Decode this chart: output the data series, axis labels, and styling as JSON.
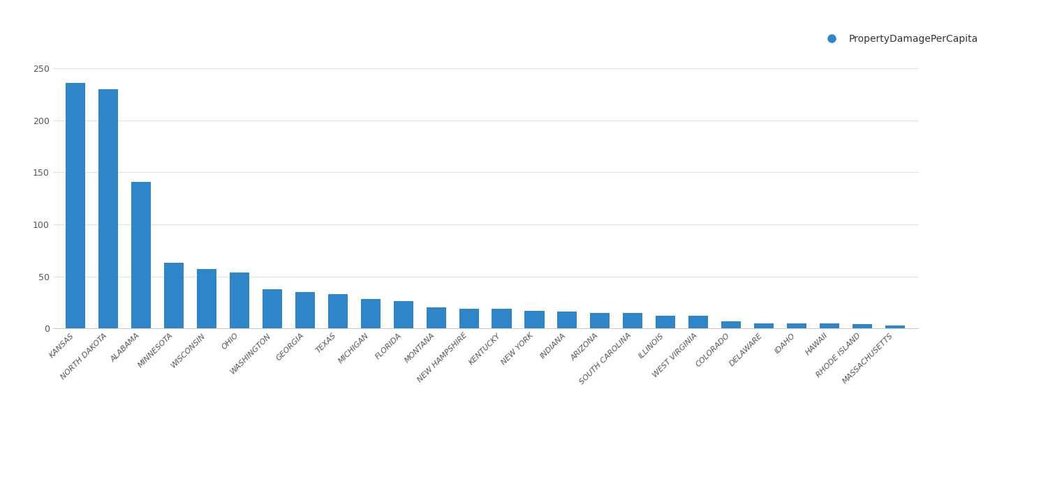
{
  "categories": [
    "KANSAS",
    "NORTH DAKOTA",
    "ALABAMA",
    "MINNESOTA",
    "WISCONSIN",
    "OHIO",
    "WASHINGTON",
    "GEORGIA",
    "TEXAS",
    "MICHIGAN",
    "FLORIDA",
    "MONTANA",
    "NEW HAMPSHIRE",
    "KENTUCKY",
    "NEW YORK",
    "INDIANA",
    "ARIZONA",
    "SOUTH CAROLINA",
    "ILLINOIS",
    "WEST VIRGINIA",
    "COLORADO",
    "DELAWARE",
    "IDAHO",
    "HAWAII",
    "RHODE ISLAND",
    "MASSACHUSETTS"
  ],
  "values": [
    236,
    230,
    141,
    63,
    57,
    54,
    38,
    35,
    33,
    28,
    26,
    20,
    19,
    19,
    17,
    16,
    15,
    15,
    12,
    12,
    7,
    5,
    5,
    5,
    4,
    3
  ],
  "bar_color": "#2E86C8",
  "background_color": "#ffffff",
  "legend_label": "PropertyDamagePerCapita",
  "legend_color": "#2E86C8",
  "ylim": [
    0,
    260
  ],
  "yticks": [
    0,
    50,
    100,
    150,
    200,
    250
  ],
  "grid_color": "#e0e0e0",
  "tick_label_color": "#555555",
  "axis_label_fontsize": 8,
  "header_text_color": "#333333"
}
